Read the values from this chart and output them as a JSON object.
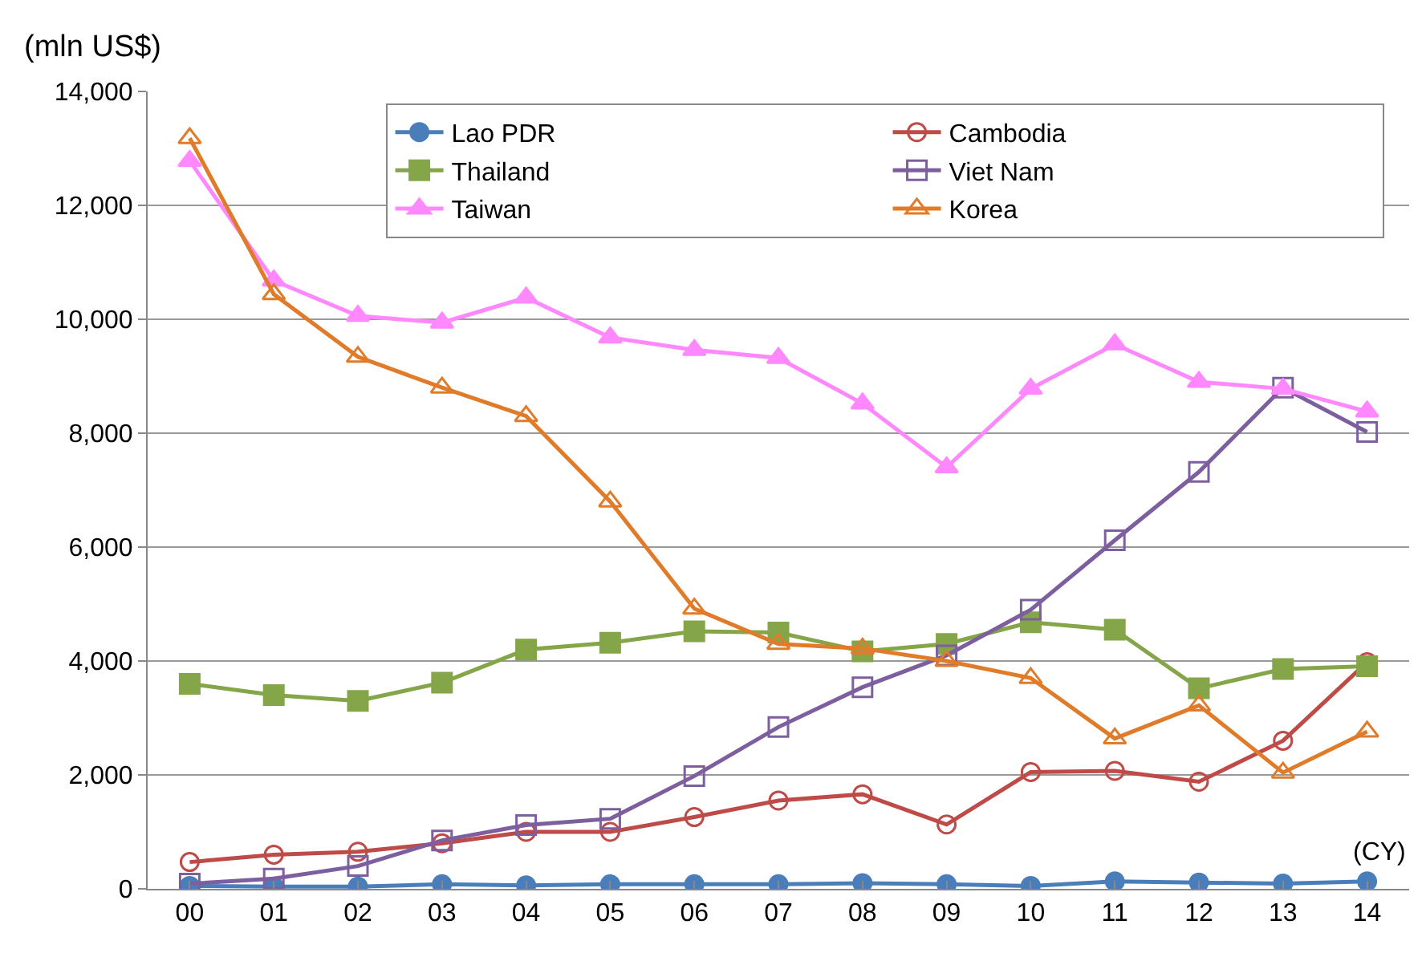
{
  "chart_data": {
    "type": "line",
    "ylabel": "(mln US$)",
    "annotations": [
      "(CY)"
    ],
    "categories": [
      "00",
      "01",
      "02",
      "03",
      "04",
      "05",
      "06",
      "07",
      "08",
      "09",
      "10",
      "11",
      "12",
      "13",
      "14"
    ],
    "ylim": [
      0,
      14000
    ],
    "yticks": [
      {
        "value": 0,
        "label": "0"
      },
      {
        "value": 2000,
        "label": "2,000"
      },
      {
        "value": 4000,
        "label": "4,000"
      },
      {
        "value": 6000,
        "label": "6,000"
      },
      {
        "value": 8000,
        "label": "8,000"
      },
      {
        "value": 10000,
        "label": "10,000"
      },
      {
        "value": 12000,
        "label": "12,000"
      },
      {
        "value": 14000,
        "label": "14,000"
      }
    ],
    "grid": "y",
    "legend": "top right",
    "series": [
      {
        "name": "Lao PDR",
        "color": "#4a7ebb",
        "marker": "circle",
        "values": [
          50,
          40,
          40,
          80,
          60,
          80,
          80,
          80,
          100,
          80,
          50,
          130,
          110,
          90,
          130
        ]
      },
      {
        "name": "Cambodia",
        "color": "#be4b48",
        "marker": "circle",
        "values": [
          470,
          600,
          650,
          800,
          1000,
          1000,
          1260,
          1550,
          1660,
          1130,
          2050,
          2070,
          1880,
          2600,
          3980
        ]
      },
      {
        "name": "Thailand",
        "color": "#84a548",
        "marker": "square",
        "values": [
          3600,
          3400,
          3300,
          3620,
          4200,
          4320,
          4520,
          4500,
          4170,
          4300,
          4680,
          4550,
          3520,
          3860,
          3910
        ]
      },
      {
        "name": "Viet Nam",
        "color": "#7d5fa0",
        "marker": "square",
        "values": [
          90,
          180,
          400,
          850,
          1120,
          1230,
          1980,
          2840,
          3540,
          4100,
          4900,
          6120,
          7320,
          8800,
          8020
        ]
      },
      {
        "name": "Taiwan",
        "color": "#ff88ff",
        "marker": "triangle",
        "values": [
          12780,
          10680,
          10060,
          9940,
          10380,
          9680,
          9460,
          9320,
          8520,
          7400,
          8780,
          9560,
          8900,
          8780,
          8380
        ]
      },
      {
        "name": "Korea",
        "color": "#e07b2a",
        "marker": "triangle",
        "values": [
          13180,
          10440,
          9340,
          8800,
          8300,
          6800,
          4920,
          4300,
          4220,
          4000,
          3700,
          2640,
          3220,
          2040,
          2760
        ]
      }
    ]
  }
}
